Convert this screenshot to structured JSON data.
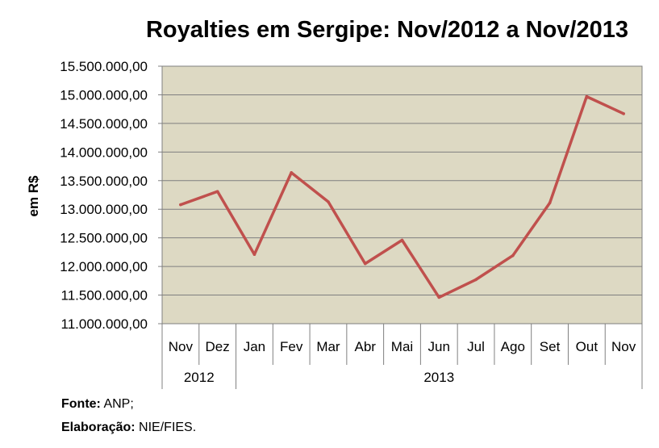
{
  "chart_data": {
    "type": "line",
    "title": "Royalties em Sergipe: Nov/2012 a Nov/2013",
    "ylabel": "em R$",
    "xlabel": "",
    "categories": [
      "Nov",
      "Dez",
      "Jan",
      "Fev",
      "Mar",
      "Abr",
      "Mai",
      "Jun",
      "Jul",
      "Ago",
      "Set",
      "Out",
      "Nov"
    ],
    "year_groups": [
      {
        "label": "2012",
        "count": 2
      },
      {
        "label": "2013",
        "count": 11
      }
    ],
    "values": [
      13080000,
      13310000,
      12210000,
      13640000,
      13130000,
      12050000,
      12460000,
      11460000,
      11770000,
      12190000,
      13110000,
      14970000,
      14670000
    ],
    "ylim": [
      11000000,
      15500000
    ],
    "yticks": [
      "11.000.000,00",
      "11.500.000,00",
      "12.000.000,00",
      "12.500.000,00",
      "13.000.000,00",
      "13.500.000,00",
      "14.000.000,00",
      "14.500.000,00",
      "15.000.000,00",
      "15.500.000,00"
    ],
    "grid": true,
    "legend": "none",
    "colors": {
      "line": "#c0504d",
      "plot_bg": "#ddd9c3",
      "grid": "#7f7f7f"
    }
  },
  "footer": {
    "source_label": "Fonte:",
    "source_value": "ANP;",
    "credit_label": "Elaboração:",
    "credit_value": "NIE/FIES."
  }
}
